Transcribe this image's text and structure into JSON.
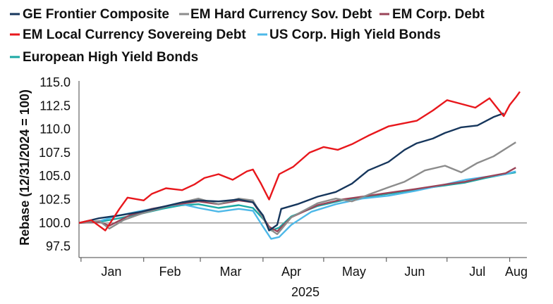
{
  "chart_data": {
    "type": "line",
    "title": "",
    "xlabel": "2025",
    "ylabel": "Rebase (12/31/2024 = 100)",
    "ylim": [
      97.5,
      115.0
    ],
    "yticks": [
      "97.5",
      "100.0",
      "102.5",
      "105.0",
      "107.5",
      "110.0",
      "112.5",
      "115.0"
    ],
    "x_range": [
      "2024-12-31",
      "2025-08-06"
    ],
    "x_tick_labels": [
      "Jan",
      "Feb",
      "Mar",
      "Apr",
      "May",
      "Jun",
      "Jul",
      "Aug"
    ],
    "grid": false,
    "legend_position": "top",
    "reference_line": 100,
    "series": [
      {
        "name": "GE Frontier Composite",
        "color": "#16365c",
        "points": [
          [
            "2024-12-31",
            100.0
          ],
          [
            "2025-01-10",
            100.5
          ],
          [
            "2025-01-20",
            100.8
          ],
          [
            "2025-01-31",
            101.2
          ],
          [
            "2025-02-10",
            101.7
          ],
          [
            "2025-02-20",
            102.2
          ],
          [
            "2025-02-28",
            102.4
          ],
          [
            "2025-03-10",
            102.3
          ],
          [
            "2025-03-20",
            102.5
          ],
          [
            "2025-03-27",
            102.2
          ],
          [
            "2025-04-01",
            100.8
          ],
          [
            "2025-04-04",
            99.2
          ],
          [
            "2025-04-08",
            99.8
          ],
          [
            "2025-04-10",
            101.5
          ],
          [
            "2025-04-18",
            102.0
          ],
          [
            "2025-04-28",
            102.8
          ],
          [
            "2025-05-07",
            103.3
          ],
          [
            "2025-05-15",
            104.2
          ],
          [
            "2025-05-23",
            105.6
          ],
          [
            "2025-06-02",
            106.5
          ],
          [
            "2025-06-10",
            107.8
          ],
          [
            "2025-06-16",
            108.5
          ],
          [
            "2025-06-24",
            109.0
          ],
          [
            "2025-06-30",
            109.6
          ],
          [
            "2025-07-08",
            110.2
          ],
          [
            "2025-07-16",
            110.4
          ],
          [
            "2025-07-24",
            111.3
          ],
          [
            "2025-07-29",
            111.7
          ]
        ]
      },
      {
        "name": "EM Hard Currency Sov. Debt",
        "color": "#8c8c8c",
        "points": [
          [
            "2024-12-31",
            100.0
          ],
          [
            "2025-01-10",
            100.2
          ],
          [
            "2025-01-15",
            99.4
          ],
          [
            "2025-01-22",
            100.3
          ],
          [
            "2025-01-31",
            101.0
          ],
          [
            "2025-02-10",
            101.6
          ],
          [
            "2025-02-20",
            102.2
          ],
          [
            "2025-02-28",
            102.6
          ],
          [
            "2025-03-10",
            102.0
          ],
          [
            "2025-03-20",
            102.6
          ],
          [
            "2025-03-27",
            102.4
          ],
          [
            "2025-04-04",
            99.4
          ],
          [
            "2025-04-08",
            98.8
          ],
          [
            "2025-04-15",
            100.6
          ],
          [
            "2025-04-28",
            102.1
          ],
          [
            "2025-05-07",
            102.6
          ],
          [
            "2025-05-15",
            102.3
          ],
          [
            "2025-05-23",
            103.0
          ],
          [
            "2025-06-02",
            103.8
          ],
          [
            "2025-06-10",
            104.4
          ],
          [
            "2025-06-20",
            105.6
          ],
          [
            "2025-06-30",
            106.1
          ],
          [
            "2025-07-08",
            105.4
          ],
          [
            "2025-07-16",
            106.4
          ],
          [
            "2025-07-24",
            107.1
          ],
          [
            "2025-08-01",
            108.2
          ],
          [
            "2025-08-04",
            108.6
          ]
        ]
      },
      {
        "name": "EM Corp. Debt",
        "color": "#9a4458",
        "points": [
          [
            "2024-12-31",
            100.0
          ],
          [
            "2025-01-10",
            100.1
          ],
          [
            "2025-01-15",
            99.7
          ],
          [
            "2025-01-25",
            100.8
          ],
          [
            "2025-02-05",
            101.5
          ],
          [
            "2025-02-15",
            101.9
          ],
          [
            "2025-02-28",
            102.3
          ],
          [
            "2025-03-10",
            102.0
          ],
          [
            "2025-03-20",
            102.4
          ],
          [
            "2025-03-27",
            102.2
          ],
          [
            "2025-04-04",
            99.6
          ],
          [
            "2025-04-08",
            99.1
          ],
          [
            "2025-04-15",
            100.6
          ],
          [
            "2025-04-28",
            101.9
          ],
          [
            "2025-05-10",
            102.5
          ],
          [
            "2025-05-23",
            102.9
          ],
          [
            "2025-06-05",
            103.3
          ],
          [
            "2025-06-15",
            103.6
          ],
          [
            "2025-06-30",
            104.1
          ],
          [
            "2025-07-10",
            104.4
          ],
          [
            "2025-07-20",
            104.9
          ],
          [
            "2025-07-30",
            105.3
          ],
          [
            "2025-08-04",
            105.9
          ]
        ]
      },
      {
        "name": "EM Local Currency Sovereing Debt",
        "color": "#e8171c",
        "points": [
          [
            "2024-12-31",
            100.0
          ],
          [
            "2025-01-06",
            100.3
          ],
          [
            "2025-01-13",
            99.2
          ],
          [
            "2025-01-20",
            101.5
          ],
          [
            "2025-01-24",
            102.7
          ],
          [
            "2025-02-01",
            102.4
          ],
          [
            "2025-02-05",
            103.1
          ],
          [
            "2025-02-12",
            103.7
          ],
          [
            "2025-02-20",
            103.5
          ],
          [
            "2025-02-26",
            104.1
          ],
          [
            "2025-03-03",
            104.8
          ],
          [
            "2025-03-10",
            105.2
          ],
          [
            "2025-03-17",
            104.6
          ],
          [
            "2025-03-24",
            105.5
          ],
          [
            "2025-03-27",
            105.7
          ],
          [
            "2025-03-31",
            104.2
          ],
          [
            "2025-04-04",
            102.5
          ],
          [
            "2025-04-09",
            105.2
          ],
          [
            "2025-04-16",
            106.0
          ],
          [
            "2025-04-24",
            107.5
          ],
          [
            "2025-05-01",
            108.1
          ],
          [
            "2025-05-08",
            107.8
          ],
          [
            "2025-05-15",
            108.4
          ],
          [
            "2025-05-23",
            109.3
          ],
          [
            "2025-06-02",
            110.3
          ],
          [
            "2025-06-09",
            110.6
          ],
          [
            "2025-06-16",
            110.9
          ],
          [
            "2025-06-24",
            112.0
          ],
          [
            "2025-07-01",
            113.1
          ],
          [
            "2025-07-08",
            112.7
          ],
          [
            "2025-07-15",
            112.3
          ],
          [
            "2025-07-22",
            113.3
          ],
          [
            "2025-07-29",
            111.4
          ],
          [
            "2025-08-01",
            112.6
          ],
          [
            "2025-08-04",
            113.4
          ],
          [
            "2025-08-06",
            114.0
          ]
        ]
      },
      {
        "name": "US Corp. High Yield Bonds",
        "color": "#4db8e8",
        "points": [
          [
            "2024-12-31",
            100.0
          ],
          [
            "2025-01-10",
            100.2
          ],
          [
            "2025-01-20",
            100.8
          ],
          [
            "2025-01-31",
            101.3
          ],
          [
            "2025-02-10",
            101.7
          ],
          [
            "2025-02-20",
            102.0
          ],
          [
            "2025-02-28",
            101.6
          ],
          [
            "2025-03-10",
            101.2
          ],
          [
            "2025-03-20",
            101.5
          ],
          [
            "2025-03-27",
            101.3
          ],
          [
            "2025-04-01",
            99.6
          ],
          [
            "2025-04-05",
            98.3
          ],
          [
            "2025-04-09",
            98.5
          ],
          [
            "2025-04-15",
            99.8
          ],
          [
            "2025-04-25",
            101.2
          ],
          [
            "2025-05-07",
            102.0
          ],
          [
            "2025-05-20",
            102.6
          ],
          [
            "2025-06-02",
            102.9
          ],
          [
            "2025-06-15",
            103.4
          ],
          [
            "2025-06-30",
            104.1
          ],
          [
            "2025-07-10",
            104.6
          ],
          [
            "2025-07-20",
            104.9
          ],
          [
            "2025-07-30",
            105.2
          ],
          [
            "2025-08-04",
            105.5
          ]
        ]
      },
      {
        "name": "European High Yield Bonds",
        "color": "#1ba8a4",
        "points": [
          [
            "2024-12-31",
            100.0
          ],
          [
            "2025-01-10",
            100.1
          ],
          [
            "2025-01-20",
            100.5
          ],
          [
            "2025-01-31",
            101.0
          ],
          [
            "2025-02-10",
            101.5
          ],
          [
            "2025-02-20",
            101.9
          ],
          [
            "2025-02-28",
            102.0
          ],
          [
            "2025-03-10",
            101.6
          ],
          [
            "2025-03-20",
            101.9
          ],
          [
            "2025-03-27",
            101.6
          ],
          [
            "2025-04-02",
            100.2
          ],
          [
            "2025-04-05",
            99.2
          ],
          [
            "2025-04-09",
            99.5
          ],
          [
            "2025-04-15",
            100.7
          ],
          [
            "2025-04-28",
            101.8
          ],
          [
            "2025-05-10",
            102.4
          ],
          [
            "2025-05-23",
            102.8
          ],
          [
            "2025-06-05",
            103.2
          ],
          [
            "2025-06-20",
            103.7
          ],
          [
            "2025-06-30",
            104.0
          ],
          [
            "2025-07-10",
            104.3
          ],
          [
            "2025-07-20",
            104.8
          ],
          [
            "2025-07-30",
            105.2
          ],
          [
            "2025-08-04",
            105.4
          ]
        ]
      }
    ]
  }
}
